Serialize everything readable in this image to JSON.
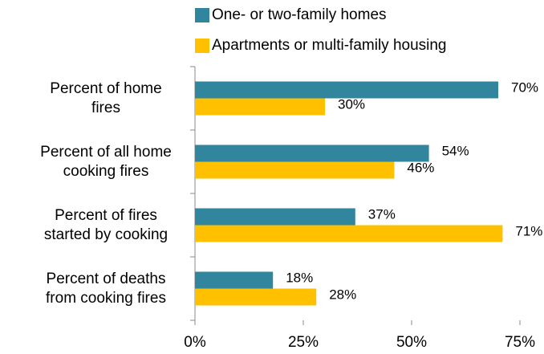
{
  "chart_data": {
    "type": "hbar",
    "categories": [
      "Percent of home fires",
      "Percent  of all home cooking fires",
      "Percent of fires started by cooking",
      "Percent of deaths from cooking fires"
    ],
    "series": [
      {
        "name": "One- or two-family homes",
        "color": "#31859c",
        "values": [
          70,
          54,
          37,
          18
        ],
        "value_labels": [
          "70%",
          "54%",
          "37%",
          "18%"
        ]
      },
      {
        "name": "Apartments or multi-family housing",
        "color": "#ffc000",
        "values": [
          30,
          46,
          71,
          28
        ],
        "value_labels": [
          "30%",
          "46%",
          "71%",
          "28%"
        ]
      }
    ],
    "xlim": [
      0,
      75
    ],
    "xticks": [
      {
        "value": 0,
        "label": "0%"
      },
      {
        "value": 25,
        "label": "25%"
      },
      {
        "value": 50,
        "label": "50%"
      },
      {
        "value": 75,
        "label": "75%"
      }
    ],
    "legend": "top"
  }
}
